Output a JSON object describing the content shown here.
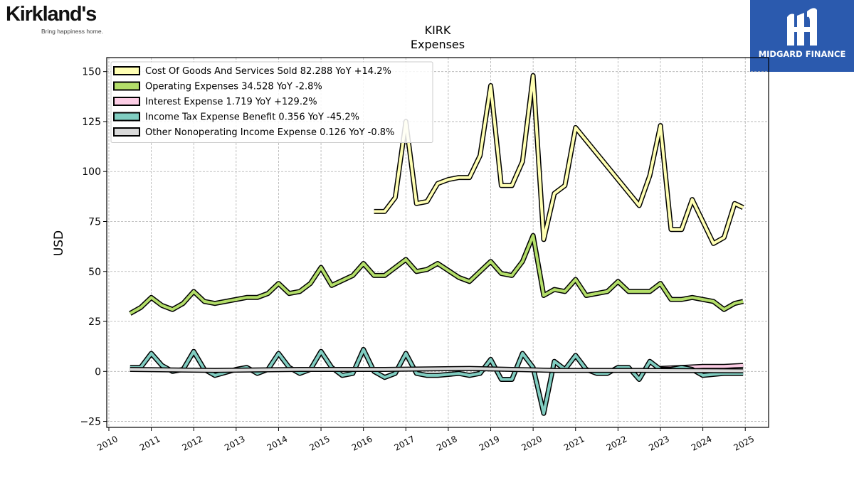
{
  "branding": {
    "left_logo_name": "Kirkland's",
    "left_logo_tagline": "Bring happiness home.",
    "right_logo_name": "MIDGARD FINANCE",
    "right_logo_color": "#2b5aae"
  },
  "chart_data": {
    "type": "area",
    "title": "KIRK",
    "subtitle": "Expenses",
    "ylabel": "USD",
    "xlabel": "",
    "xlim": [
      2009.95,
      2025.55
    ],
    "ylim": [
      -28,
      157
    ],
    "yticks": [
      -25,
      0,
      25,
      50,
      75,
      100,
      125,
      150
    ],
    "xticks": [
      "2010",
      "2011",
      "2012",
      "2013",
      "2014",
      "2015",
      "2016",
      "2017",
      "2018",
      "2019",
      "2020",
      "2021",
      "2022",
      "2023",
      "2024",
      "2025"
    ],
    "grid": true,
    "legend_position": "top-left",
    "series": [
      {
        "name": "Cost Of Goods And Services Sold",
        "legend_label": "Cost Of Goods And Services Sold  82.288 YoY +14.2%",
        "color": "#ffffb3",
        "x": [
          2016.25,
          2016.5,
          2016.75,
          2017.0,
          2017.25,
          2017.5,
          2017.75,
          2018.0,
          2018.25,
          2018.5,
          2018.75,
          2019.0,
          2019.25,
          2019.5,
          2019.75,
          2020.0,
          2020.25,
          2020.5,
          2020.75,
          2021.0,
          2022.5,
          2022.75,
          2023.0,
          2023.25,
          2023.5,
          2023.75,
          2024.25,
          2024.5,
          2024.75,
          2024.95
        ],
        "values": [
          80,
          80,
          87,
          125,
          84,
          85,
          94,
          96,
          97,
          97,
          108,
          143,
          93,
          93,
          105,
          148,
          66,
          89,
          93,
          122,
          83,
          98,
          123,
          71,
          71,
          86,
          64,
          67,
          84,
          82
        ]
      },
      {
        "name": "Operating Expenses",
        "legend_label": "Operating Expenses  34.528 YoY -2.8%",
        "color": "#b3de69",
        "x": [
          2010.5,
          2010.75,
          2011.0,
          2011.25,
          2011.5,
          2011.75,
          2012.0,
          2012.25,
          2012.5,
          2013.25,
          2013.5,
          2013.75,
          2014.0,
          2014.25,
          2014.5,
          2014.75,
          2015.0,
          2015.25,
          2015.75,
          2016.0,
          2016.25,
          2016.5,
          2017.0,
          2017.25,
          2017.5,
          2017.75,
          2018.25,
          2018.5,
          2019.0,
          2019.25,
          2019.5,
          2019.75,
          2020.0,
          2020.25,
          2020.5,
          2020.75,
          2021.0,
          2021.25,
          2021.75,
          2022.0,
          2022.25,
          2022.5,
          2022.75,
          2023.0,
          2023.25,
          2023.5,
          2023.75,
          2024.25,
          2024.5,
          2024.75,
          2024.95
        ],
        "values": [
          29,
          32,
          37,
          33,
          31,
          34,
          40,
          35,
          34,
          37,
          37,
          39,
          44,
          39,
          40,
          44,
          52,
          43,
          48,
          54,
          48,
          48,
          56,
          50,
          51,
          54,
          47,
          45,
          55,
          49,
          48,
          55,
          68,
          38,
          41,
          40,
          46,
          38,
          40,
          45,
          40,
          40,
          40,
          44,
          36,
          36,
          37,
          35,
          31,
          34,
          35
        ]
      },
      {
        "name": "Interest Expense",
        "legend_label": "Interest Expense  1.719 YoY +129.2%",
        "color": "#fccde5",
        "x": [
          2023.0,
          2023.5,
          2024.0,
          2024.5,
          2024.95
        ],
        "values": [
          1.5,
          2,
          2.5,
          2.5,
          3
        ]
      },
      {
        "name": "Income Tax Expense Benefit",
        "legend_label": "Income Tax Expense Benefit  0.356 YoY -45.2%",
        "color": "#80cdc1",
        "x": [
          2010.5,
          2010.75,
          2011.0,
          2011.25,
          2011.5,
          2011.75,
          2012.0,
          2012.25,
          2012.5,
          2013.0,
          2013.25,
          2013.5,
          2013.75,
          2014.0,
          2014.25,
          2014.5,
          2014.75,
          2015.0,
          2015.25,
          2015.5,
          2015.75,
          2016.0,
          2016.25,
          2016.5,
          2016.75,
          2017.0,
          2017.25,
          2017.5,
          2017.75,
          2018.25,
          2018.5,
          2018.75,
          2019.0,
          2019.25,
          2019.5,
          2019.75,
          2020.0,
          2020.25,
          2020.5,
          2020.75,
          2021.0,
          2021.25,
          2021.5,
          2021.75,
          2022.0,
          2022.25,
          2022.5,
          2022.75,
          2023.0,
          2023.25,
          2023.5,
          2023.75,
          2024.0,
          2024.5,
          2024.95
        ],
        "values": [
          2,
          2,
          9,
          3,
          0,
          1,
          10,
          1,
          -2,
          1,
          2,
          -1,
          1,
          9,
          2,
          -1,
          1,
          10,
          2,
          -2,
          -1,
          11,
          0,
          -3,
          -1,
          9,
          -1,
          -2,
          -2,
          -1,
          -2,
          -1,
          6,
          -4,
          -4,
          9,
          2,
          -21,
          5,
          1,
          8,
          1,
          -1,
          -1,
          2,
          2,
          -4,
          5,
          1,
          1,
          2,
          1,
          -2,
          -1,
          -1
        ]
      },
      {
        "name": "Other Nonoperating Income Expense",
        "legend_label": "Other Nonoperating Income Expense  0.126 YoY -0.8%",
        "color": "#d9d9d9",
        "x": [
          2010.5,
          2012.5,
          2014.5,
          2016.5,
          2018.5,
          2020.5,
          2022.5,
          2024.95
        ],
        "values": [
          1,
          0.5,
          1,
          1,
          1.5,
          0.5,
          0.5,
          0.3
        ]
      }
    ]
  }
}
